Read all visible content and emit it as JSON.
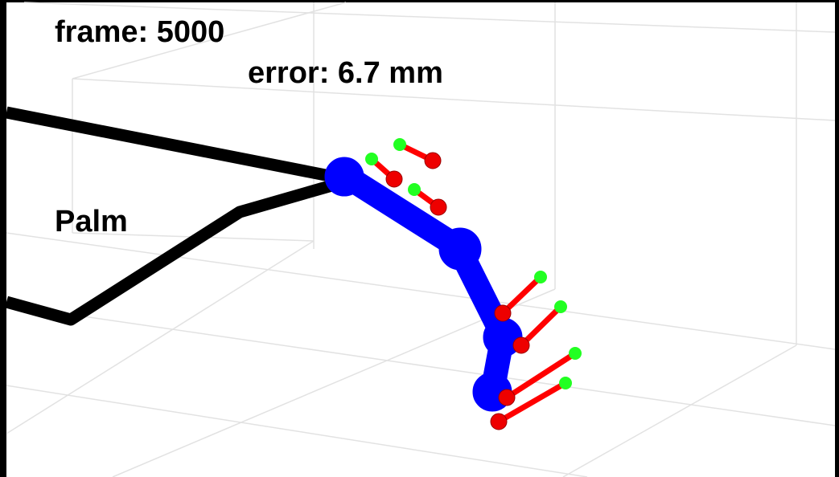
{
  "annotations": {
    "frame": "frame: 5000",
    "error": "error: 6.7 mm",
    "palm": "Palm"
  }
}
